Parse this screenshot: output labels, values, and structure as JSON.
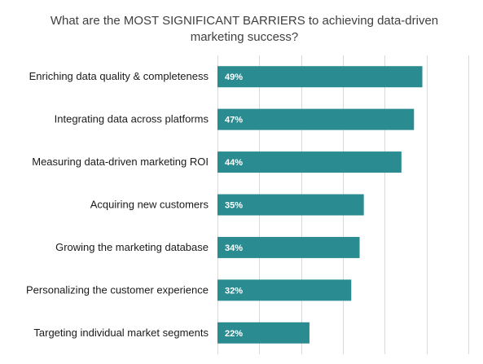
{
  "chart_data": {
    "type": "bar",
    "orientation": "horizontal",
    "title": "What are the MOST SIGNIFICANT  BARRIERS to achieving data-driven marketing success?",
    "categories": [
      "Enriching data quality & completeness",
      "Integrating data across platforms",
      "Measuring data-driven marketing ROI",
      "Acquiring new customers",
      "Growing the marketing database",
      "Personalizing the customer experience",
      "Targeting individual market segments"
    ],
    "values": [
      49,
      47,
      44,
      35,
      34,
      32,
      22
    ],
    "value_labels": [
      "49%",
      "47%",
      "44%",
      "35%",
      "34%",
      "32%",
      "22%"
    ],
    "xlim": [
      0,
      60
    ],
    "grid": true,
    "bar_color": "#2a8c91",
    "grid_color": "#d9d9d9",
    "xlabel": "",
    "ylabel": ""
  }
}
